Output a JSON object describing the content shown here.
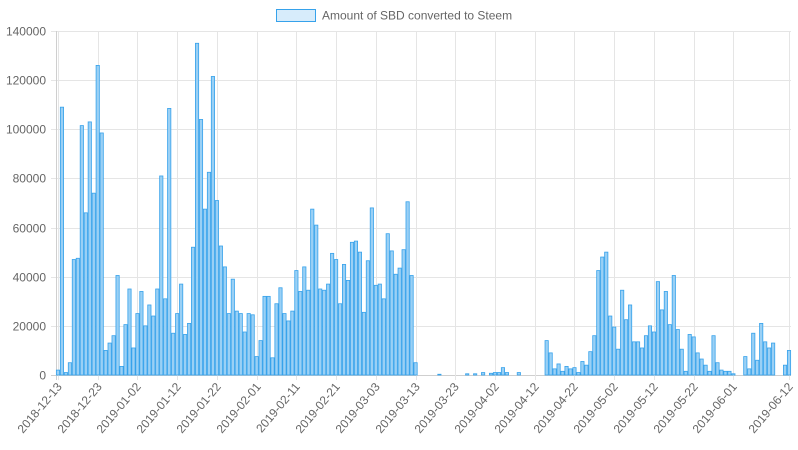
{
  "chart_data": {
    "type": "bar",
    "legend": "Amount of SBD converted to Steem",
    "legend_position": "top",
    "colors": {
      "fill": "#9ad0f5",
      "stroke": "#36a2eb"
    },
    "grid": true,
    "ylim": [
      0,
      140000
    ],
    "y_ticks": [
      "0",
      "20000",
      "40000",
      "60000",
      "80000",
      "100000",
      "120000",
      "140000"
    ],
    "x_tick_labels": [
      "2018-12-13",
      "2018-12-23",
      "2019-01-02",
      "2019-01-12",
      "2019-01-22",
      "2019-02-01",
      "2019-02-11",
      "2019-02-21",
      "2019-03-03",
      "2019-03-13",
      "2019-03-23",
      "2019-04-02",
      "2019-04-12",
      "2019-04-22",
      "2019-05-02",
      "2019-05-12",
      "2019-05-22",
      "2019-06-01",
      "2019-06-12"
    ],
    "categories_start": "2018-12-13",
    "categories_end": "2019-06-14",
    "values": [
      2000,
      109000,
      1000,
      5000,
      47000,
      47500,
      101500,
      66000,
      103000,
      74000,
      126000,
      98500,
      10000,
      13000,
      16000,
      40500,
      3500,
      20500,
      35000,
      11000,
      25000,
      34000,
      20000,
      28500,
      24000,
      35000,
      81000,
      31000,
      108500,
      17000,
      25000,
      37000,
      16500,
      21000,
      52000,
      135000,
      104000,
      67500,
      82500,
      121500,
      71000,
      52500,
      44000,
      25000,
      39000,
      26000,
      25000,
      17500,
      25000,
      24500,
      7500,
      14000,
      32000,
      32000,
      7000,
      29000,
      35500,
      25000,
      22000,
      26000,
      42500,
      34000,
      44000,
      34500,
      67500,
      61000,
      35000,
      34500,
      37000,
      49500,
      47000,
      29000,
      45000,
      38500,
      54000,
      54500,
      50000,
      25500,
      46500,
      68000,
      36500,
      37000,
      31000,
      57500,
      50500,
      41000,
      43500,
      51000,
      70500,
      40500,
      5000,
      0,
      0,
      0,
      0,
      0,
      300,
      0,
      0,
      0,
      0,
      0,
      0,
      500,
      0,
      500,
      0,
      1000,
      0,
      700,
      1000,
      1000,
      3000,
      1000,
      0,
      0,
      1000,
      0,
      0,
      0,
      0,
      0,
      0,
      14000,
      9000,
      2500,
      4500,
      1500,
      3500,
      2500,
      3000,
      1000,
      5500,
      4000,
      9500,
      16000,
      42500,
      48000,
      50000,
      24000,
      19500,
      10500,
      34500,
      22500,
      28500,
      13500,
      13500,
      11000,
      16000,
      20000,
      17500,
      38000,
      26500,
      34000,
      20500,
      40500,
      18500,
      10500,
      1500,
      16500,
      15500,
      9000,
      6500,
      4000,
      1500,
      16000,
      5000,
      2000,
      1500,
      1500,
      500,
      0,
      0,
      7500,
      2500,
      17000,
      6000,
      21000,
      13500,
      11000,
      13000,
      0,
      0,
      4000,
      10000
    ]
  }
}
